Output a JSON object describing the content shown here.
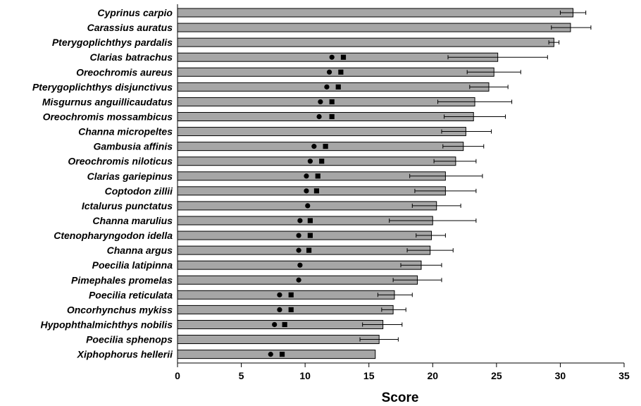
{
  "chart_data": {
    "type": "bar",
    "orientation": "horizontal",
    "xlabel": "Score",
    "xlim": [
      0,
      35
    ],
    "xticks": [
      0,
      5,
      10,
      15,
      20,
      25,
      30,
      35
    ],
    "grid": false,
    "legend": "none",
    "colors": {
      "bar_fill": "#a6a6a6",
      "bar_stroke": "#000000",
      "marker": "#000000"
    },
    "categories": [
      "Cyprinus carpio",
      "Carassius auratus",
      "Pterygoplichthys pardalis",
      "Clarias batrachus",
      "Oreochromis aureus",
      "Pterygoplichthys disjunctivus",
      "Misgurnus anguillicaudatus",
      "Oreochromis mossambicus",
      "Channa micropeltes",
      "Gambusia affinis",
      "Oreochromis niloticus",
      "Clarias gariepinus",
      "Coptodon zillii",
      "Ictalurus punctatus",
      "Channa marulius",
      "Ctenopharyngodon idella",
      "Channa argus",
      "Poecilia latipinna",
      "Pimephales promelas",
      "Poecilia reticulata",
      "Oncorhynchus mykiss",
      "Hypophthalmichthys nobilis",
      "Poecilia sphenops",
      "Xiphophorus hellerii"
    ],
    "values": [
      31.0,
      30.8,
      29.5,
      25.1,
      24.8,
      24.4,
      23.3,
      23.2,
      22.6,
      22.4,
      21.8,
      21.0,
      21.0,
      20.3,
      20.0,
      19.9,
      19.8,
      19.1,
      18.8,
      17.0,
      16.9,
      16.1,
      15.8,
      15.5
    ],
    "error_low": [
      30.0,
      29.3,
      29.1,
      21.2,
      22.7,
      22.9,
      20.4,
      20.9,
      20.7,
      20.8,
      20.1,
      18.2,
      18.6,
      18.4,
      16.6,
      18.7,
      18.0,
      17.5,
      16.9,
      15.7,
      16.0,
      14.5,
      14.3,
      null
    ],
    "error_high": [
      32.0,
      32.4,
      29.9,
      29.0,
      26.9,
      25.9,
      26.2,
      25.7,
      24.6,
      24.0,
      23.4,
      23.9,
      23.4,
      22.2,
      23.4,
      21.0,
      21.6,
      20.7,
      20.7,
      18.4,
      17.9,
      17.6,
      17.3,
      null
    ],
    "circle_values": [
      null,
      null,
      null,
      12.1,
      11.9,
      11.7,
      11.2,
      11.1,
      null,
      10.7,
      10.4,
      10.1,
      10.1,
      10.2,
      9.6,
      9.5,
      9.5,
      9.6,
      9.5,
      8.0,
      8.0,
      7.6,
      null,
      7.3
    ],
    "square_values": [
      null,
      null,
      null,
      13.0,
      12.8,
      12.6,
      12.1,
      12.1,
      null,
      11.6,
      11.3,
      11.0,
      10.9,
      null,
      10.4,
      10.4,
      10.3,
      null,
      null,
      8.9,
      8.9,
      8.4,
      null,
      8.2
    ]
  }
}
